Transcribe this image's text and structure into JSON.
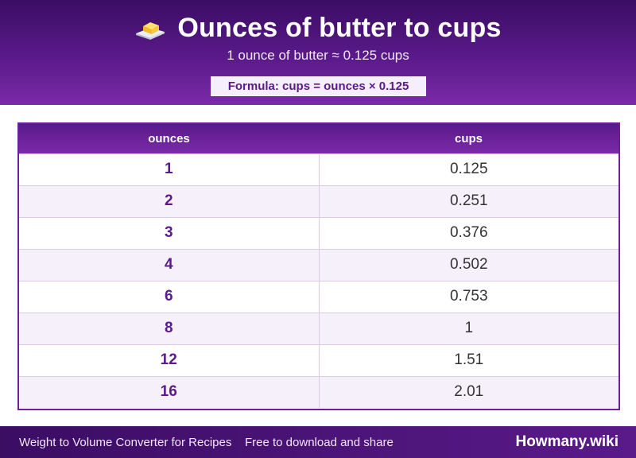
{
  "header": {
    "title": "Ounces of butter to cups",
    "subtitle": "1 ounce of butter ≈ 0.125 cups",
    "formula": "Formula: cups = ounces × 0.125",
    "icon": "butter-icon"
  },
  "table": {
    "columns": [
      "ounces",
      "cups"
    ],
    "rows": [
      {
        "ounces": "1",
        "cups": "0.125"
      },
      {
        "ounces": "2",
        "cups": "0.251"
      },
      {
        "ounces": "3",
        "cups": "0.376"
      },
      {
        "ounces": "4",
        "cups": "0.502"
      },
      {
        "ounces": "6",
        "cups": "0.753"
      },
      {
        "ounces": "8",
        "cups": "1"
      },
      {
        "ounces": "12",
        "cups": "1.51"
      },
      {
        "ounces": "16",
        "cups": "2.01"
      }
    ]
  },
  "footer": {
    "left": "Weight to Volume Converter for Recipes",
    "middle": "Free to download and share",
    "brand": "Howmany.wiki"
  },
  "colors": {
    "header_dark": "#3b0d63",
    "header_light": "#7b2aa8",
    "accent_text": "#5b1a8b",
    "row_alt": "#f6f0fb"
  }
}
